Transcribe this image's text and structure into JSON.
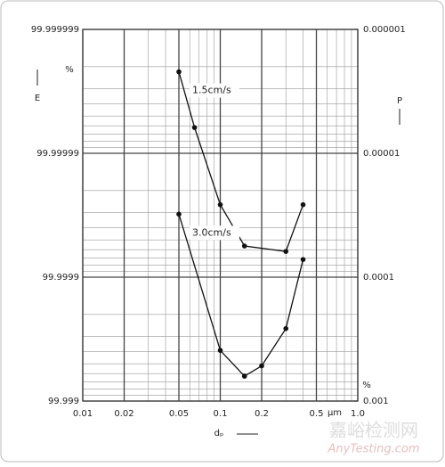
{
  "chart_data": {
    "type": "line",
    "y_label": "E",
    "y2_label": "P",
    "x_label": "dₚ",
    "x_unit": "μm",
    "y_unit": "%",
    "y2_unit": "%",
    "xscale": "log",
    "yscale": "log-penetration",
    "y2scale": "log",
    "xlim": [
      0.01,
      1
    ],
    "xticks": [
      0.01,
      0.02,
      0.05,
      0.1,
      0.2,
      0.5,
      {
        "value": 1,
        "label": "1.0"
      }
    ],
    "ylim": [
      99.999,
      99.999999
    ],
    "yticks": [
      99.999,
      99.9999,
      99.99999,
      99.999999
    ],
    "y2lim": [
      0.001,
      1e-06
    ],
    "y2ticks": [
      0.001,
      0.0001,
      1e-05,
      1e-06
    ],
    "grid": true,
    "series": [
      {
        "name": "1.5cm/s",
        "color": "#111111",
        "axis": "y2",
        "x": [
          0.05,
          0.065,
          0.1,
          0.15,
          0.3,
          0.4
        ],
        "values": [
          2.2e-06,
          6.2e-06,
          2.6e-05,
          5.6e-05,
          6.2e-05,
          2.6e-05
        ]
      },
      {
        "name": "3.0cm/s",
        "color": "#111111",
        "axis": "y2",
        "x": [
          0.05,
          0.1,
          0.15,
          0.2,
          0.3,
          0.4
        ],
        "values": [
          3.1e-05,
          0.00039,
          0.00063,
          0.00052,
          0.00026,
          7.2e-05
        ]
      }
    ],
    "watermark": [
      "嘉峪检测网",
      "AnyTesting.com"
    ]
  }
}
